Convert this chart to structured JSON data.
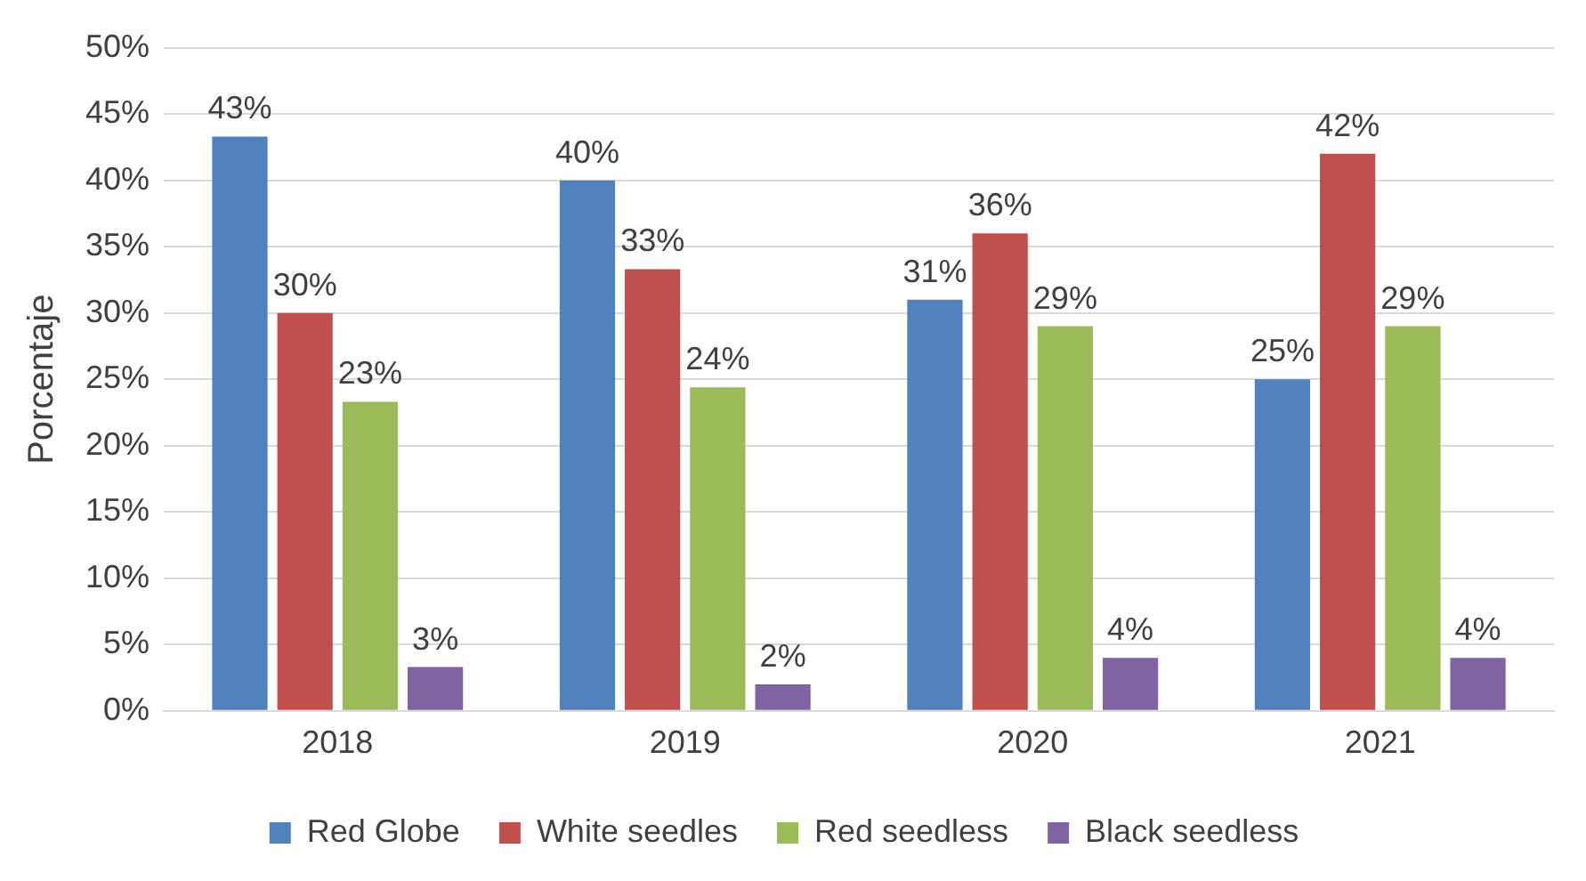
{
  "chart_data": {
    "type": "bar",
    "ylabel": "Porcentaje",
    "categories": [
      "2018",
      "2019",
      "2020",
      "2021"
    ],
    "series": [
      {
        "name": "Red Globe",
        "color": "#4f81bd",
        "values": [
          43.3,
          40,
          31,
          25
        ],
        "value_labels": [
          "43%",
          "40%",
          "31%",
          "25%"
        ]
      },
      {
        "name": "White seedles",
        "color": "#c0504d",
        "values": [
          30,
          33.3,
          36,
          42
        ],
        "value_labels": [
          "30%",
          "33%",
          "36%",
          "42%"
        ]
      },
      {
        "name": "Red seedless",
        "color": "#9bbb59",
        "values": [
          23.3,
          24.4,
          29,
          29
        ],
        "value_labels": [
          "23%",
          "24%",
          "29%",
          "29%"
        ]
      },
      {
        "name": "Black seedless",
        "color": "#8064a2",
        "values": [
          3.3,
          2,
          4,
          4
        ],
        "value_labels": [
          "3%",
          "2%",
          "4%",
          "4%"
        ]
      }
    ],
    "ylim": [
      0,
      50
    ],
    "yticks": [
      {
        "value": 0,
        "label": "0%"
      },
      {
        "value": 5,
        "label": "5%"
      },
      {
        "value": 10,
        "label": "10%"
      },
      {
        "value": 15,
        "label": "15%"
      },
      {
        "value": 20,
        "label": "20%"
      },
      {
        "value": 25,
        "label": "25%"
      },
      {
        "value": 30,
        "label": "30%"
      },
      {
        "value": 35,
        "label": "35%"
      },
      {
        "value": 40,
        "label": "40%"
      },
      {
        "value": 45,
        "label": "45%"
      },
      {
        "value": 50,
        "label": "50%"
      }
    ],
    "grid": "y",
    "legend": "bottom"
  }
}
